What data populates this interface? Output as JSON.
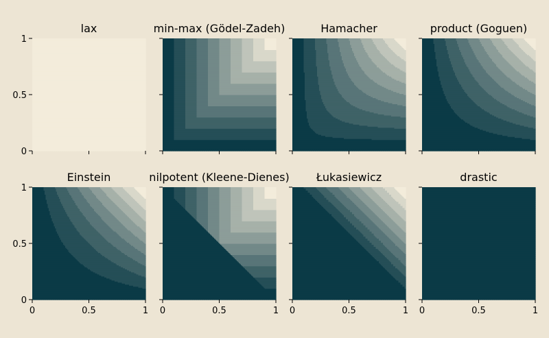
{
  "figure": {
    "background": "#ede5d4",
    "colormap": {
      "low": "#0b3a46",
      "high": "#f3ecdb"
    },
    "levels": 10
  },
  "chart_data": [
    {
      "type": "heatmap",
      "title": "lax",
      "norm": "lax",
      "xlim": [
        0,
        1
      ],
      "ylim": [
        0,
        1
      ],
      "xticks": [
        "0",
        "0.5",
        "1"
      ],
      "yticks": [
        "0",
        "0.5",
        "1"
      ]
    },
    {
      "type": "heatmap",
      "title": "min-max (Gödel-Zadeh)",
      "norm": "minmax",
      "xlim": [
        0,
        1
      ],
      "ylim": [
        0,
        1
      ],
      "xticks": [
        "0",
        "0.5",
        "1"
      ],
      "yticks": [
        "0",
        "0.5",
        "1"
      ]
    },
    {
      "type": "heatmap",
      "title": "Hamacher",
      "norm": "hamacher",
      "xlim": [
        0,
        1
      ],
      "ylim": [
        0,
        1
      ],
      "xticks": [
        "0",
        "0.5",
        "1"
      ],
      "yticks": [
        "0",
        "0.5",
        "1"
      ]
    },
    {
      "type": "heatmap",
      "title": "product (Goguen)",
      "norm": "product",
      "xlim": [
        0,
        1
      ],
      "ylim": [
        0,
        1
      ],
      "xticks": [
        "0",
        "0.5",
        "1"
      ],
      "yticks": [
        "0",
        "0.5",
        "1"
      ]
    },
    {
      "type": "heatmap",
      "title": "Einstein",
      "norm": "einstein",
      "xlim": [
        0,
        1
      ],
      "ylim": [
        0,
        1
      ],
      "xticks": [
        "0",
        "0.5",
        "1"
      ],
      "yticks": [
        "0",
        "0.5",
        "1"
      ]
    },
    {
      "type": "heatmap",
      "title": "nilpotent (Kleene-Dienes)",
      "norm": "nilpotent",
      "xlim": [
        0,
        1
      ],
      "ylim": [
        0,
        1
      ],
      "xticks": [
        "0",
        "0.5",
        "1"
      ],
      "yticks": [
        "0",
        "0.5",
        "1"
      ]
    },
    {
      "type": "heatmap",
      "title": "Łukasiewicz",
      "norm": "lukasiewicz",
      "xlim": [
        0,
        1
      ],
      "ylim": [
        0,
        1
      ],
      "xticks": [
        "0",
        "0.5",
        "1"
      ],
      "yticks": [
        "0",
        "0.5",
        "1"
      ]
    },
    {
      "type": "heatmap",
      "title": "drastic",
      "norm": "drastic",
      "xlim": [
        0,
        1
      ],
      "ylim": [
        0,
        1
      ],
      "xticks": [
        "0",
        "0.5",
        "1"
      ],
      "yticks": [
        "0",
        "0.5",
        "1"
      ]
    }
  ]
}
